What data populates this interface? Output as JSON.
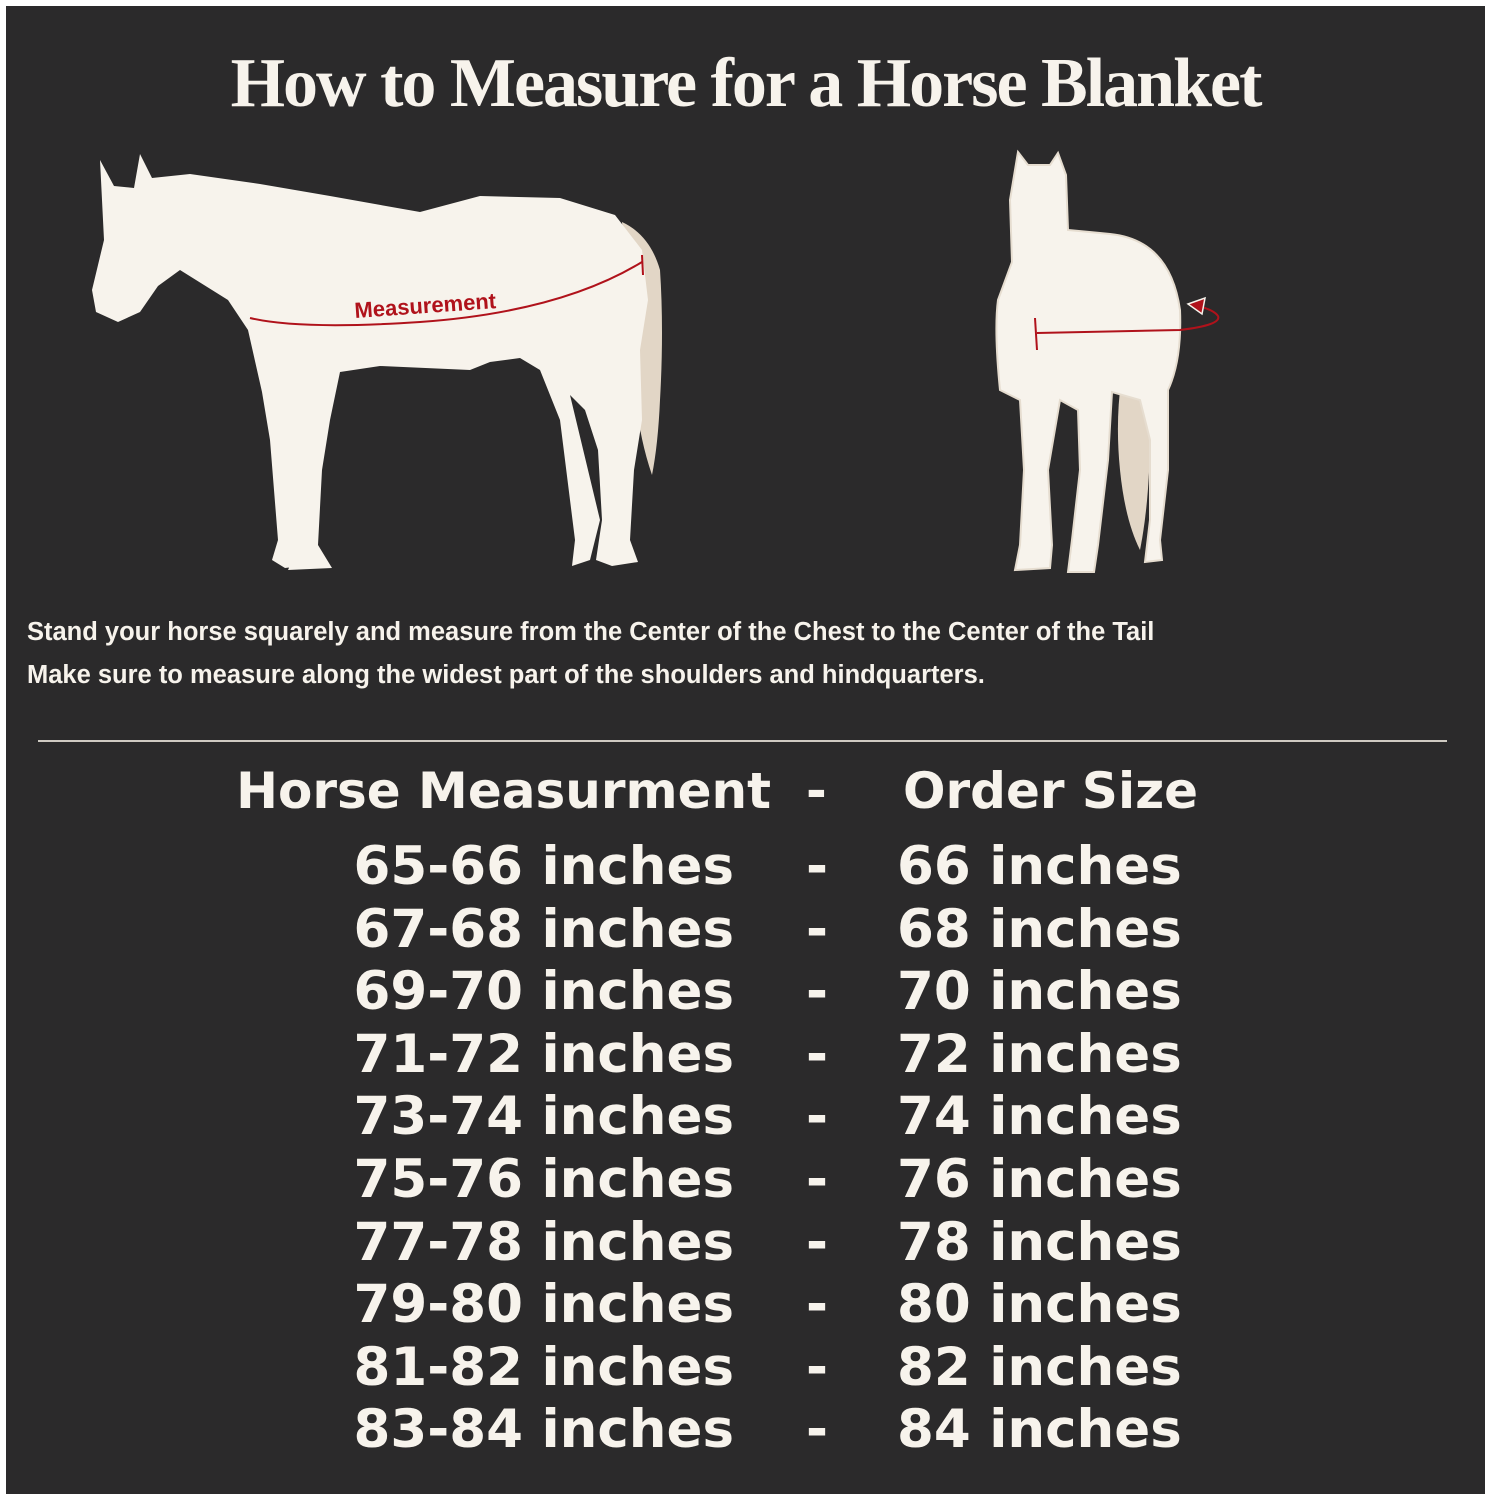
{
  "title": "How to Measure for a Horse Blanket",
  "diagram": {
    "side_label": "Measurement",
    "colors": {
      "background": "#2b2a2b",
      "horse": "#f7f3ec",
      "tail": "#e2d6c6",
      "measure_line": "#b0121b"
    }
  },
  "instructions": [
    "Stand your horse squarely and measure from the Center of the Chest to the Center of the Tail",
    "Make sure to measure along the widest part of the shoulders and hindquarters."
  ],
  "table": {
    "header": {
      "measurement": "Horse Measurment",
      "separator": "-",
      "size": "Order Size"
    },
    "rows": [
      {
        "measurement": "65-66 inches",
        "separator": "-",
        "size": "66 inches"
      },
      {
        "measurement": "67-68 inches",
        "separator": "-",
        "size": "68 inches"
      },
      {
        "measurement": "69-70 inches",
        "separator": "-",
        "size": "70 inches"
      },
      {
        "measurement": "71-72 inches",
        "separator": "-",
        "size": "72 inches"
      },
      {
        "measurement": "73-74 inches",
        "separator": "-",
        "size": "74 inches"
      },
      {
        "measurement": "75-76 inches",
        "separator": "-",
        "size": "76 inches"
      },
      {
        "measurement": "77-78 inches",
        "separator": "-",
        "size": "78 inches"
      },
      {
        "measurement": "79-80 inches",
        "separator": "-",
        "size": "80 inches"
      },
      {
        "measurement": "81-82 inches",
        "separator": "-",
        "size": "82 inches"
      },
      {
        "measurement": "83-84 inches",
        "separator": "-",
        "size": "84 inches"
      }
    ]
  }
}
